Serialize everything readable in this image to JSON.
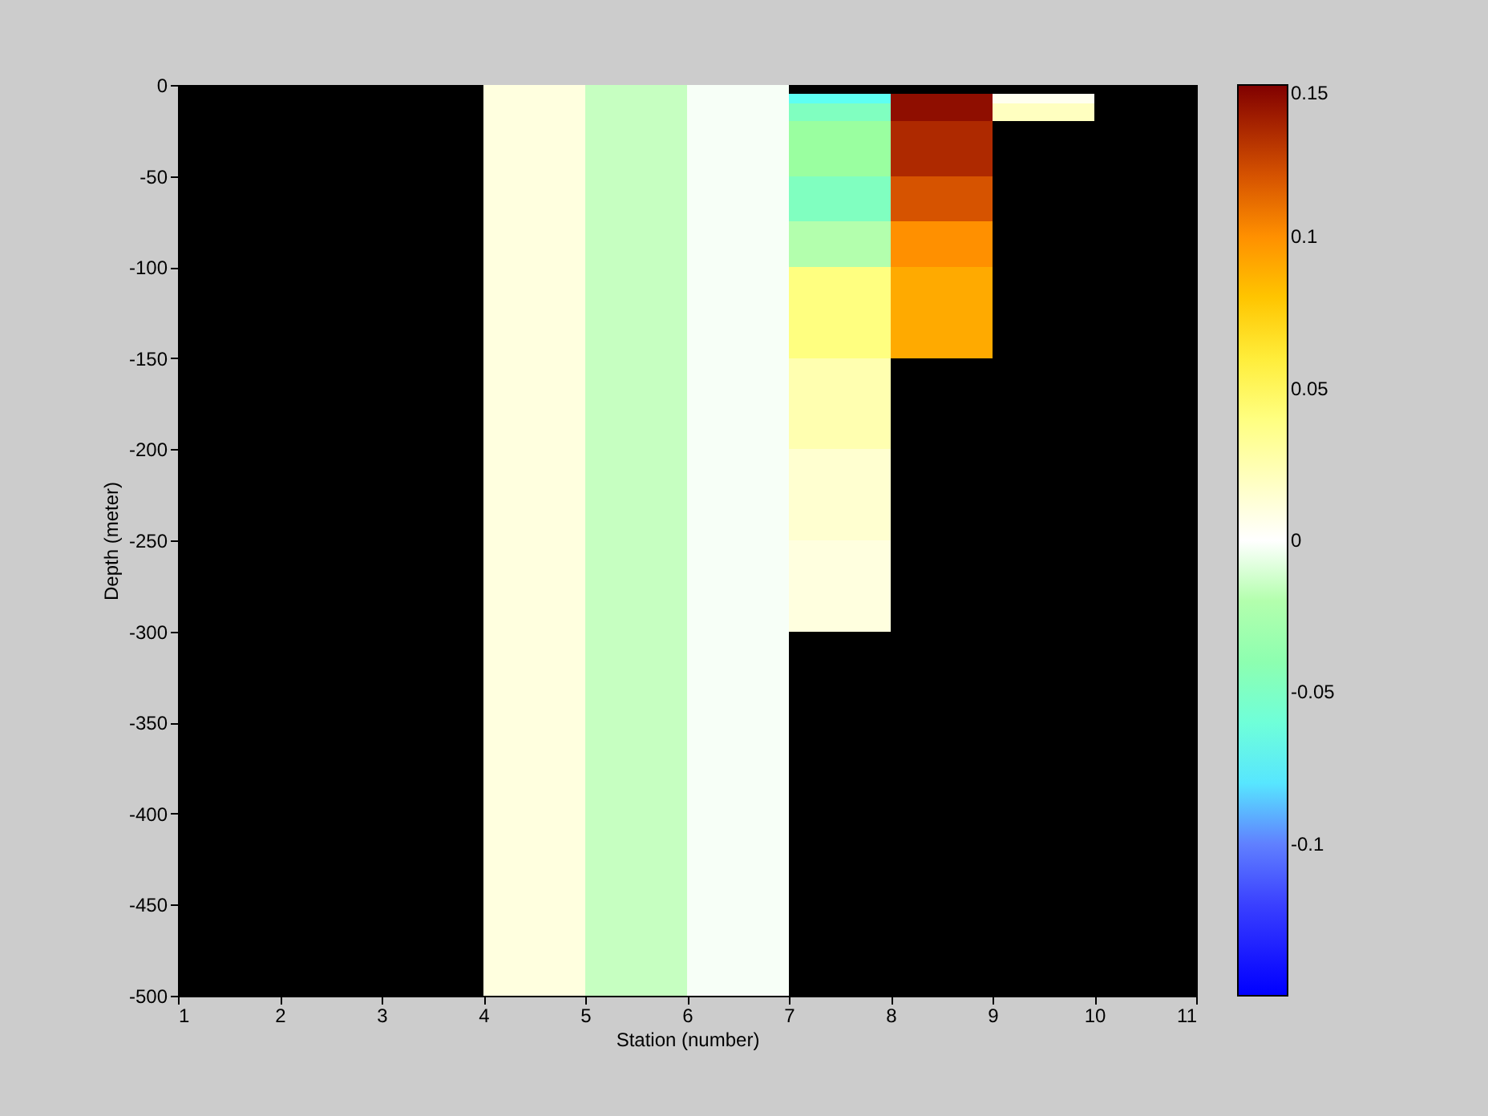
{
  "chart_data": {
    "type": "heatmap",
    "xlabel": "Station (number)",
    "ylabel": "Depth (meter)",
    "xlim": [
      1,
      11
    ],
    "xticks": [
      1,
      2,
      3,
      4,
      5,
      6,
      7,
      8,
      9,
      10,
      11
    ],
    "ylim": [
      -500,
      0
    ],
    "yticks": [
      -500,
      -450,
      -400,
      -350,
      -300,
      -250,
      -200,
      -150,
      -100,
      -50,
      0
    ],
    "cells": [
      [
        null,
        null,
        null,
        0.01,
        -0.015,
        -0.002,
        null,
        null,
        null,
        null
      ],
      [
        null,
        null,
        null,
        0.01,
        -0.015,
        -0.002,
        -0.07,
        0.145,
        0.005,
        null
      ],
      [
        null,
        null,
        null,
        0.01,
        -0.015,
        -0.002,
        -0.05,
        0.145,
        0.02,
        null
      ],
      [
        null,
        null,
        null,
        0.01,
        -0.015,
        -0.002,
        -0.05,
        0.145,
        0.02,
        null
      ],
      [
        null,
        null,
        null,
        0.01,
        -0.015,
        -0.002,
        -0.03,
        0.135,
        null,
        null
      ],
      [
        null,
        null,
        null,
        0.01,
        -0.015,
        -0.002,
        -0.03,
        0.135,
        null,
        null
      ],
      [
        null,
        null,
        null,
        0.01,
        -0.015,
        -0.002,
        -0.03,
        0.135,
        null,
        null
      ],
      [
        null,
        null,
        null,
        0.01,
        -0.015,
        -0.002,
        -0.03,
        0.135,
        null,
        null
      ],
      [
        null,
        null,
        null,
        0.01,
        -0.015,
        -0.002,
        -0.03,
        0.135,
        null,
        null
      ],
      [
        null,
        null,
        null,
        0.01,
        -0.015,
        -0.002,
        -0.03,
        0.135,
        null,
        null
      ],
      [
        null,
        null,
        null,
        0.01,
        -0.015,
        -0.002,
        -0.05,
        0.12,
        null,
        null
      ],
      [
        null,
        null,
        null,
        0.01,
        -0.015,
        -0.002,
        -0.05,
        0.12,
        null,
        null
      ],
      [
        null,
        null,
        null,
        0.01,
        -0.015,
        -0.002,
        -0.05,
        0.12,
        null,
        null
      ],
      [
        null,
        null,
        null,
        0.01,
        -0.015,
        -0.002,
        -0.05,
        0.12,
        null,
        null
      ],
      [
        null,
        null,
        null,
        0.01,
        -0.015,
        -0.002,
        -0.05,
        0.12,
        null,
        null
      ],
      [
        null,
        null,
        null,
        0.01,
        -0.015,
        -0.002,
        -0.02,
        0.1,
        null,
        null
      ],
      [
        null,
        null,
        null,
        0.01,
        -0.015,
        -0.002,
        -0.02,
        0.1,
        null,
        null
      ],
      [
        null,
        null,
        null,
        0.01,
        -0.015,
        -0.002,
        -0.02,
        0.1,
        null,
        null
      ],
      [
        null,
        null,
        null,
        0.01,
        -0.015,
        -0.002,
        -0.02,
        0.1,
        null,
        null
      ],
      [
        null,
        null,
        null,
        0.01,
        -0.015,
        -0.002,
        -0.02,
        0.1,
        null,
        null
      ],
      [
        null,
        null,
        null,
        0.01,
        -0.015,
        -0.002,
        0.04,
        0.09,
        null,
        null
      ],
      [
        null,
        null,
        null,
        0.01,
        -0.015,
        -0.002,
        0.04,
        0.09,
        null,
        null
      ],
      [
        null,
        null,
        null,
        0.01,
        -0.015,
        -0.002,
        0.04,
        0.09,
        null,
        null
      ],
      [
        null,
        null,
        null,
        0.01,
        -0.015,
        -0.002,
        0.04,
        0.09,
        null,
        null
      ],
      [
        null,
        null,
        null,
        0.01,
        -0.015,
        -0.002,
        0.04,
        0.09,
        null,
        null
      ],
      [
        null,
        null,
        null,
        0.01,
        -0.015,
        -0.002,
        0.04,
        0.09,
        null,
        null
      ],
      [
        null,
        null,
        null,
        0.01,
        -0.015,
        -0.002,
        0.04,
        0.09,
        null,
        null
      ],
      [
        null,
        null,
        null,
        0.01,
        -0.015,
        -0.002,
        0.04,
        0.09,
        null,
        null
      ],
      [
        null,
        null,
        null,
        0.01,
        -0.015,
        -0.002,
        0.04,
        0.09,
        null,
        null
      ],
      [
        null,
        null,
        null,
        0.01,
        -0.015,
        -0.002,
        0.04,
        0.09,
        null,
        null
      ],
      [
        null,
        null,
        null,
        0.01,
        -0.015,
        -0.002,
        0.025,
        null,
        null,
        null
      ],
      [
        null,
        null,
        null,
        0.01,
        -0.015,
        -0.002,
        0.025,
        null,
        null,
        null
      ],
      [
        null,
        null,
        null,
        0.01,
        -0.015,
        -0.002,
        0.025,
        null,
        null,
        null
      ],
      [
        null,
        null,
        null,
        0.01,
        -0.015,
        -0.002,
        0.025,
        null,
        null,
        null
      ],
      [
        null,
        null,
        null,
        0.01,
        -0.015,
        -0.002,
        0.025,
        null,
        null,
        null
      ],
      [
        null,
        null,
        null,
        0.01,
        -0.015,
        -0.002,
        0.025,
        null,
        null,
        null
      ],
      [
        null,
        null,
        null,
        0.01,
        -0.015,
        -0.002,
        0.025,
        null,
        null,
        null
      ],
      [
        null,
        null,
        null,
        0.01,
        -0.015,
        -0.002,
        0.025,
        null,
        null,
        null
      ],
      [
        null,
        null,
        null,
        0.01,
        -0.015,
        -0.002,
        0.025,
        null,
        null,
        null
      ],
      [
        null,
        null,
        null,
        0.01,
        -0.015,
        -0.002,
        0.025,
        null,
        null,
        null
      ],
      [
        null,
        null,
        null,
        0.01,
        -0.015,
        -0.002,
        0.015,
        null,
        null,
        null
      ],
      [
        null,
        null,
        null,
        0.01,
        -0.015,
        -0.002,
        0.015,
        null,
        null,
        null
      ],
      [
        null,
        null,
        null,
        0.01,
        -0.015,
        -0.002,
        0.015,
        null,
        null,
        null
      ],
      [
        null,
        null,
        null,
        0.01,
        -0.015,
        -0.002,
        0.015,
        null,
        null,
        null
      ],
      [
        null,
        null,
        null,
        0.01,
        -0.015,
        -0.002,
        0.015,
        null,
        null,
        null
      ],
      [
        null,
        null,
        null,
        0.01,
        -0.015,
        -0.002,
        0.015,
        null,
        null,
        null
      ],
      [
        null,
        null,
        null,
        0.01,
        -0.015,
        -0.002,
        0.015,
        null,
        null,
        null
      ],
      [
        null,
        null,
        null,
        0.01,
        -0.015,
        -0.002,
        0.015,
        null,
        null,
        null
      ],
      [
        null,
        null,
        null,
        0.01,
        -0.015,
        -0.002,
        0.015,
        null,
        null,
        null
      ],
      [
        null,
        null,
        null,
        0.01,
        -0.015,
        -0.002,
        0.015,
        null,
        null,
        null
      ],
      [
        null,
        null,
        null,
        0.01,
        -0.015,
        -0.002,
        0.01,
        null,
        null,
        null
      ],
      [
        null,
        null,
        null,
        0.01,
        -0.015,
        -0.002,
        0.01,
        null,
        null,
        null
      ],
      [
        null,
        null,
        null,
        0.01,
        -0.015,
        -0.002,
        0.01,
        null,
        null,
        null
      ],
      [
        null,
        null,
        null,
        0.01,
        -0.015,
        -0.002,
        0.01,
        null,
        null,
        null
      ],
      [
        null,
        null,
        null,
        0.01,
        -0.015,
        -0.002,
        0.01,
        null,
        null,
        null
      ],
      [
        null,
        null,
        null,
        0.01,
        -0.015,
        -0.002,
        0.01,
        null,
        null,
        null
      ],
      [
        null,
        null,
        null,
        0.01,
        -0.015,
        -0.002,
        0.01,
        null,
        null,
        null
      ],
      [
        null,
        null,
        null,
        0.01,
        -0.015,
        -0.002,
        0.01,
        null,
        null,
        null
      ],
      [
        null,
        null,
        null,
        0.01,
        -0.015,
        -0.002,
        0.01,
        null,
        null,
        null
      ],
      [
        null,
        null,
        null,
        0.01,
        -0.015,
        -0.002,
        0.01,
        null,
        null,
        null
      ],
      [
        null,
        null,
        null,
        0.01,
        -0.015,
        -0.002,
        null,
        null,
        null,
        null
      ],
      [
        null,
        null,
        null,
        0.01,
        -0.015,
        -0.002,
        null,
        null,
        null,
        null
      ],
      [
        null,
        null,
        null,
        0.01,
        -0.015,
        -0.002,
        null,
        null,
        null,
        null
      ],
      [
        null,
        null,
        null,
        0.01,
        -0.015,
        -0.002,
        null,
        null,
        null,
        null
      ],
      [
        null,
        null,
        null,
        0.01,
        -0.015,
        -0.002,
        null,
        null,
        null,
        null
      ],
      [
        null,
        null,
        null,
        0.01,
        -0.015,
        -0.002,
        null,
        null,
        null,
        null
      ],
      [
        null,
        null,
        null,
        0.01,
        -0.015,
        -0.002,
        null,
        null,
        null,
        null
      ],
      [
        null,
        null,
        null,
        0.01,
        -0.015,
        -0.002,
        null,
        null,
        null,
        null
      ],
      [
        null,
        null,
        null,
        0.01,
        -0.015,
        -0.002,
        null,
        null,
        null,
        null
      ],
      [
        null,
        null,
        null,
        0.01,
        -0.015,
        -0.002,
        null,
        null,
        null,
        null
      ],
      [
        null,
        null,
        null,
        0.01,
        -0.015,
        -0.002,
        null,
        null,
        null,
        null
      ],
      [
        null,
        null,
        null,
        0.01,
        -0.015,
        -0.002,
        null,
        null,
        null,
        null
      ],
      [
        null,
        null,
        null,
        0.01,
        -0.015,
        -0.002,
        null,
        null,
        null,
        null
      ],
      [
        null,
        null,
        null,
        0.01,
        -0.015,
        -0.002,
        null,
        null,
        null,
        null
      ],
      [
        null,
        null,
        null,
        0.01,
        -0.015,
        -0.002,
        null,
        null,
        null,
        null
      ],
      [
        null,
        null,
        null,
        0.01,
        -0.015,
        -0.002,
        null,
        null,
        null,
        null
      ],
      [
        null,
        null,
        null,
        0.01,
        -0.015,
        -0.002,
        null,
        null,
        null,
        null
      ],
      [
        null,
        null,
        null,
        0.01,
        -0.015,
        -0.002,
        null,
        null,
        null,
        null
      ],
      [
        null,
        null,
        null,
        0.01,
        -0.015,
        -0.002,
        null,
        null,
        null,
        null
      ],
      [
        null,
        null,
        null,
        0.01,
        -0.015,
        -0.002,
        null,
        null,
        null,
        null
      ],
      [
        null,
        null,
        null,
        0.01,
        -0.015,
        -0.002,
        null,
        null,
        null,
        null
      ],
      [
        null,
        null,
        null,
        0.01,
        -0.015,
        -0.002,
        null,
        null,
        null,
        null
      ],
      [
        null,
        null,
        null,
        0.01,
        -0.015,
        -0.002,
        null,
        null,
        null,
        null
      ],
      [
        null,
        null,
        null,
        0.01,
        -0.015,
        -0.002,
        null,
        null,
        null,
        null
      ],
      [
        null,
        null,
        null,
        0.01,
        -0.015,
        -0.002,
        null,
        null,
        null,
        null
      ],
      [
        null,
        null,
        null,
        0.01,
        -0.015,
        -0.002,
        null,
        null,
        null,
        null
      ],
      [
        null,
        null,
        null,
        0.01,
        -0.015,
        -0.002,
        null,
        null,
        null,
        null
      ],
      [
        null,
        null,
        null,
        0.01,
        -0.015,
        -0.002,
        null,
        null,
        null,
        null
      ],
      [
        null,
        null,
        null,
        0.01,
        -0.015,
        -0.002,
        null,
        null,
        null,
        null
      ],
      [
        null,
        null,
        null,
        0.01,
        -0.015,
        -0.002,
        null,
        null,
        null,
        null
      ],
      [
        null,
        null,
        null,
        0.01,
        -0.015,
        -0.002,
        null,
        null,
        null,
        null
      ],
      [
        null,
        null,
        null,
        0.01,
        -0.015,
        -0.002,
        null,
        null,
        null,
        null
      ],
      [
        null,
        null,
        null,
        0.01,
        -0.015,
        -0.002,
        null,
        null,
        null,
        null
      ],
      [
        null,
        null,
        null,
        0.01,
        -0.015,
        -0.002,
        null,
        null,
        null,
        null
      ],
      [
        null,
        null,
        null,
        0.01,
        -0.015,
        -0.002,
        null,
        null,
        null,
        null
      ],
      [
        null,
        null,
        null,
        0.01,
        -0.015,
        -0.002,
        null,
        null,
        null,
        null
      ],
      [
        null,
        null,
        null,
        0.01,
        -0.015,
        -0.002,
        null,
        null,
        null,
        null
      ],
      [
        null,
        null,
        null,
        0.01,
        -0.015,
        -0.002,
        null,
        null,
        null,
        null
      ],
      [
        null,
        null,
        null,
        0.01,
        -0.015,
        -0.002,
        null,
        null,
        null,
        null
      ],
      [
        null,
        null,
        null,
        0.01,
        -0.015,
        -0.002,
        null,
        null,
        null,
        null
      ]
    ],
    "clim": [
      -0.15,
      0.15
    ],
    "cticks": [
      -0.1,
      -0.05,
      0,
      0.05,
      0.1,
      0.15
    ],
    "colors": [
      "#0000ff",
      "#3030ff",
      "#6080ff",
      "#55ffff",
      "#80ffc0",
      "#a0ff98",
      "#ffffff",
      "#ffffb0",
      "#ffff60",
      "#ffd200",
      "#ff9000",
      "#cc4400",
      "#800000"
    ]
  }
}
